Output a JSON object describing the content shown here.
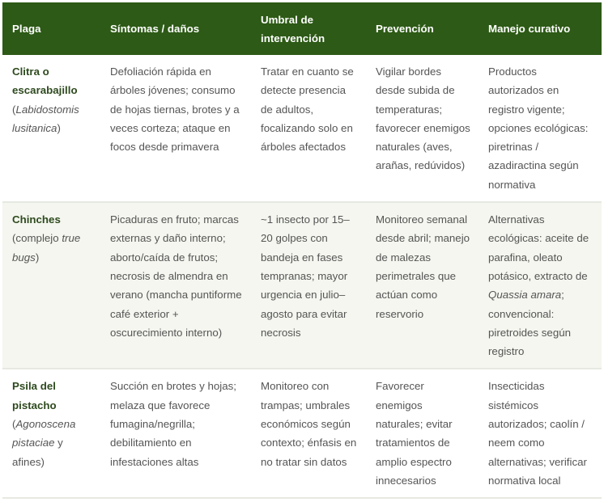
{
  "table": {
    "headers": [
      "Plaga",
      "Síntomas / daños",
      "Umbral de intervención",
      "Prevención",
      "Manejo curativo"
    ],
    "rows": [
      {
        "pest": [
          {
            "t": "Clitra o escarabajillo",
            "b": true
          },
          {
            "t": " ("
          },
          {
            "t": "Labidostomis lusitanica",
            "i": true
          },
          {
            "t": ")"
          }
        ],
        "cells": [
          [
            {
              "t": "Defoliación rápida en árboles jóvenes; consumo de hojas tiernas, brotes y a veces corteza; ataque en focos desde primavera"
            }
          ],
          [
            {
              "t": "Tratar en cuanto se detecte presencia de adultos, focalizando solo en árboles afectados"
            }
          ],
          [
            {
              "t": "Vigilar bordes desde subida de temperaturas; favorecer enemigos naturales (aves, arañas, redúvidos)"
            }
          ],
          [
            {
              "t": "Productos autorizados en registro vigente; opciones ecológicas: piretrinas / azadiractina según normativa"
            }
          ]
        ]
      },
      {
        "pest": [
          {
            "t": "Chinches",
            "b": true
          },
          {
            "t": " (complejo "
          },
          {
            "t": "true bugs",
            "i": true
          },
          {
            "t": ")"
          }
        ],
        "cells": [
          [
            {
              "t": "Picaduras en fruto; marcas externas y daño interno; aborto/caída de frutos; necrosis de almendra en verano (mancha puntiforme café exterior + oscurecimiento interno)"
            }
          ],
          [
            {
              "t": "~1 insecto por 15–20 golpes con bandeja en fases tempranas; mayor urgencia en julio–agosto para evitar necrosis"
            }
          ],
          [
            {
              "t": "Monitoreo semanal desde abril; manejo de malezas perimetrales que actúan como reservorio"
            }
          ],
          [
            {
              "t": "Alternativas ecológicas: aceite de parafina, oleato potásico, extracto de "
            },
            {
              "t": "Quassia amara",
              "i": true
            },
            {
              "t": "; convencional: piretroides según registro"
            }
          ]
        ]
      },
      {
        "pest": [
          {
            "t": "Psila del pistacho",
            "b": true
          },
          {
            "t": " ("
          },
          {
            "t": "Agonoscena pistaciae",
            "i": true
          },
          {
            "t": " y afines)"
          }
        ],
        "cells": [
          [
            {
              "t": "Succión en brotes y hojas; melaza que favorece fumagina/negrilla; debilitamiento en infestaciones altas"
            }
          ],
          [
            {
              "t": "Monitoreo con trampas; umbrales económicos según contexto; énfasis en no tratar sin datos"
            }
          ],
          [
            {
              "t": "Favorecer enemigos naturales; evitar tratamientos de amplio espectro innecesarios"
            }
          ],
          [
            {
              "t": "Insecticidas sistémicos autorizados; caolín / neem como alternativas; verificar normativa local"
            }
          ]
        ]
      }
    ],
    "colors": {
      "header_bg": "#2d5a16",
      "alt_row_bg": "#f4f6ef",
      "pest_name": "#2e4a1e"
    }
  }
}
